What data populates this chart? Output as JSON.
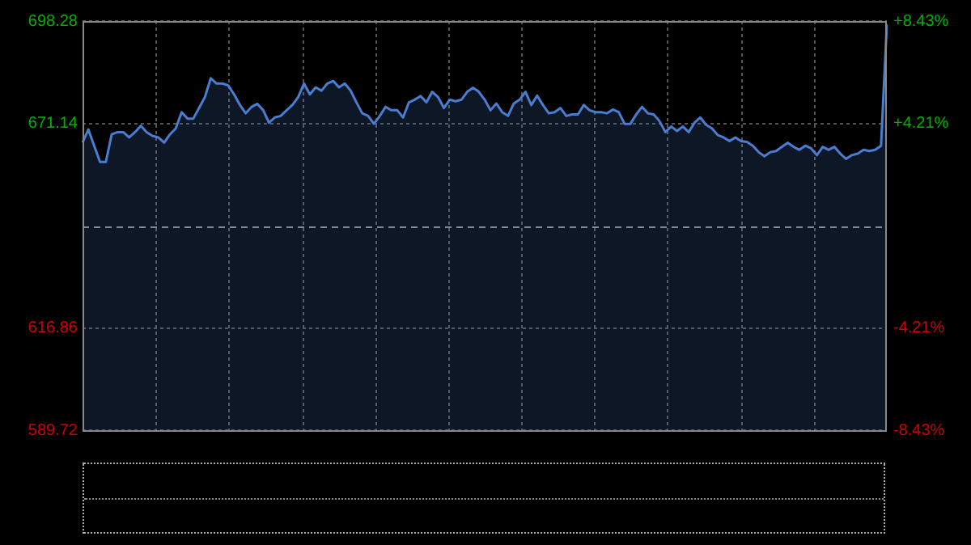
{
  "chart_data": {
    "type": "area",
    "categories": [
      null,
      null,
      null,
      null,
      null,
      null,
      null,
      null,
      null,
      null,
      null,
      null,
      null,
      null,
      null,
      null,
      null,
      null,
      null,
      null,
      null,
      null,
      null,
      null,
      null,
      null,
      null,
      null,
      null,
      null,
      null,
      null,
      null,
      null,
      null,
      null,
      null,
      null,
      null,
      null,
      null,
      null,
      null,
      null,
      null,
      null,
      null,
      null,
      null,
      null,
      null,
      null,
      null,
      null,
      null,
      null,
      null,
      null,
      null,
      null,
      null,
      null,
      null,
      null,
      null,
      null,
      null,
      null,
      null,
      null,
      null,
      null,
      null,
      null,
      null,
      null,
      null,
      null,
      null,
      null,
      null,
      null,
      null,
      null,
      null,
      null,
      null,
      null,
      null,
      null,
      null,
      null,
      null,
      null,
      null,
      null,
      null,
      null,
      null,
      null,
      null,
      null,
      null,
      null,
      null,
      null,
      null,
      null,
      null,
      null,
      null,
      null,
      null,
      null,
      null,
      null,
      null,
      null,
      null,
      null,
      null,
      null,
      null,
      null,
      null,
      null,
      null,
      null,
      null,
      null,
      null,
      null,
      null,
      null,
      null,
      null,
      null,
      null,
      null
    ],
    "ylim": [
      589.72,
      698.28
    ],
    "yticks": [
      589.72,
      616.86,
      671.14,
      698.28
    ],
    "ref_lines": [
      {
        "axis": "y",
        "value": 644,
        "color": "#8a8a8a",
        "line_style": "dashed"
      }
    ],
    "y2lim": [
      -8.43,
      8.43
    ],
    "y2ticks": [
      {
        "value": -8.43,
        "label": "-8.43%"
      },
      {
        "value": -4.21,
        "label": "-4.21%"
      },
      {
        "value": 4.21,
        "label": "+4.21%"
      },
      {
        "value": 8.43,
        "label": "+8.43%"
      }
    ],
    "grid": true,
    "tick_labels": "y",
    "legend": false,
    "marker": "none",
    "line_style": "solid",
    "series": [
      {
        "color": "#4a7dd0",
        "values": [
          666.0,
          669.5,
          665.2,
          660.9,
          660.9,
          668.2,
          668.8,
          668.8,
          667.4,
          668.8,
          670.5,
          668.8,
          667.8,
          667.4,
          666.0,
          668.2,
          669.8,
          674.1,
          672.4,
          672.4,
          675.2,
          678.1,
          683.1,
          681.7,
          681.7,
          681.2,
          678.8,
          676.0,
          673.8,
          675.5,
          676.3,
          674.6,
          671.3,
          672.7,
          673.1,
          674.6,
          676.0,
          678.1,
          681.7,
          678.8,
          680.7,
          679.8,
          681.7,
          682.4,
          680.7,
          681.7,
          679.8,
          676.7,
          673.8,
          673.1,
          671.0,
          673.1,
          675.5,
          674.6,
          674.6,
          672.7,
          676.7,
          677.4,
          678.4,
          676.7,
          679.5,
          678.1,
          675.2,
          677.4,
          677.0,
          677.4,
          679.5,
          680.6,
          679.5,
          677.4,
          674.6,
          676.4,
          674.1,
          673.1,
          676.4,
          677.4,
          679.5,
          676.0,
          678.5,
          676.0,
          673.8,
          674.1,
          675.2,
          673.1,
          673.5,
          673.5,
          676.0,
          674.6,
          674.1,
          674.1,
          673.8,
          674.8,
          674.1,
          671.0,
          671.0,
          673.5,
          675.5,
          673.8,
          673.5,
          671.7,
          668.8,
          670.3,
          669.1,
          670.3,
          668.8,
          671.3,
          672.7,
          670.7,
          669.8,
          668.0,
          667.4,
          666.4,
          667.4,
          666.4,
          666.2,
          665.2,
          663.5,
          662.4,
          663.5,
          663.8,
          664.9,
          666.0,
          664.9,
          664.1,
          665.2,
          664.5,
          662.7,
          664.9,
          664.1,
          664.9,
          663.1,
          661.7,
          662.7,
          663.1,
          664.1,
          663.8,
          664.1,
          665.2,
          697.4
        ]
      }
    ]
  }
}
